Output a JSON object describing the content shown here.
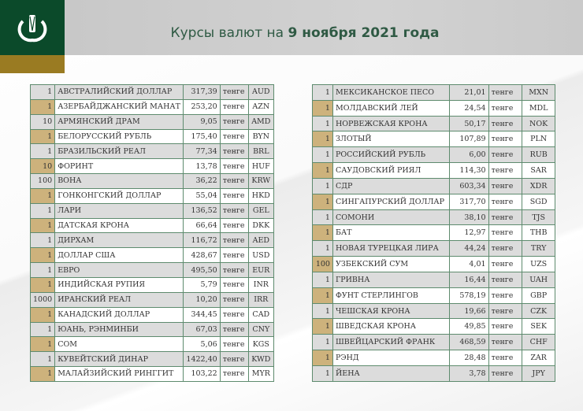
{
  "header": {
    "title_prefix": "Курсы валют на ",
    "title_date": "9 ноября 2021 года"
  },
  "colors": {
    "green": "#0b4a2a",
    "gold": "#9a7b22",
    "tan": "#cdb27c"
  },
  "left_table": [
    [
      "1",
      "АВСТРАЛИЙСКИЙ ДОЛЛАР",
      "317,39",
      "тенге",
      "AUD"
    ],
    [
      "1",
      "АЗЕРБАЙДЖАНСКИЙ МАНАТ",
      "253,20",
      "тенге",
      "AZN"
    ],
    [
      "10",
      "АРМЯНСКИЙ  ДРАМ",
      "9,05",
      "тенге",
      "AMD"
    ],
    [
      "1",
      "БЕЛОРУССКИЙ РУБЛЬ",
      "175,40",
      "тенге",
      "BYN"
    ],
    [
      "1",
      "БРАЗИЛЬСКИЙ РЕАЛ",
      "77,34",
      "тенге",
      "BRL"
    ],
    [
      "10",
      "ФОРИНТ",
      "13,78",
      "тенге",
      "HUF"
    ],
    [
      "100",
      "ВОНА",
      "36,22",
      "тенге",
      "KRW"
    ],
    [
      "1",
      "ГОНКОНГСКИЙ ДОЛЛАР",
      "55,04",
      "тенге",
      "HKD"
    ],
    [
      "1",
      "ЛАРИ",
      "136,52",
      "тенге",
      "GEL"
    ],
    [
      "1",
      "ДАТСКАЯ КРОНА",
      "66,64",
      "тенге",
      "DKK"
    ],
    [
      "1",
      "ДИРХАМ",
      "116,72",
      "тенге",
      "AED"
    ],
    [
      "1",
      "ДОЛЛАР США",
      "428,67",
      "тенге",
      "USD"
    ],
    [
      "1",
      "ЕВРО",
      "495,50",
      "тенге",
      "EUR"
    ],
    [
      "1",
      "ИНДИЙСКАЯ РУПИЯ",
      "5,79",
      "тенге",
      "INR"
    ],
    [
      "1000",
      "ИРАНСКИЙ РЕАЛ",
      "10,20",
      "тенге",
      "IRR"
    ],
    [
      "1",
      "КАНАДСКИЙ ДОЛЛАР",
      "344,45",
      "тенге",
      "CAD"
    ],
    [
      "1",
      "ЮАНЬ, РЭНМИНБИ",
      "67,03",
      "тенге",
      "CNY"
    ],
    [
      "1",
      "СОМ",
      "5,06",
      "тенге",
      "KGS"
    ],
    [
      "1",
      "КУВЕЙТСКИЙ ДИНАР",
      "1422,40",
      "тенге",
      "KWD"
    ],
    [
      "1",
      "МАЛАЙЗИЙСКИЙ РИНГГИТ",
      "103,22",
      "тенге",
      "MYR"
    ]
  ],
  "right_table": [
    [
      "1",
      "МЕКСИКАНСКОЕ ПЕСО",
      "21,01",
      "тенге",
      "MXN"
    ],
    [
      "1",
      "МОЛДАВСКИЙ ЛЕЙ",
      "24,54",
      "тенге",
      "MDL"
    ],
    [
      "1",
      "НОРВЕЖСКАЯ КРОНА",
      "50,17",
      "тенге",
      "NOK"
    ],
    [
      "1",
      "ЗЛОТЫЙ",
      "107,89",
      "тенге",
      "PLN"
    ],
    [
      "1",
      "РОССИЙСКИЙ РУБЛЬ",
      "6,00",
      "тенге",
      "RUB"
    ],
    [
      "1",
      "САУДОВСКИЙ РИЯЛ",
      "114,30",
      "тенге",
      "SAR"
    ],
    [
      "1",
      "СДР",
      "603,34",
      "тенге",
      "XDR"
    ],
    [
      "1",
      "СИНГАПУРСКИЙ ДОЛЛАР",
      "317,70",
      "тенге",
      "SGD"
    ],
    [
      "1",
      "СОМОНИ",
      "38,10",
      "тенге",
      "TJS"
    ],
    [
      "1",
      "БАТ",
      "12,97",
      "тенге",
      "THB"
    ],
    [
      "1",
      "НОВАЯ ТУРЕЦКАЯ ЛИРА",
      "44,24",
      "тенге",
      "TRY"
    ],
    [
      "100",
      "УЗБЕКСКИЙ СУМ",
      "4,01",
      "тенге",
      "UZS"
    ],
    [
      "1",
      "ГРИВНА",
      "16,44",
      "тенге",
      "UAH"
    ],
    [
      "1",
      "ФУНТ СТЕРЛИНГОВ",
      "578,19",
      "тенге",
      "GBP"
    ],
    [
      "1",
      "ЧЕШСКАЯ КРОНА",
      "19,66",
      "тенге",
      "CZK"
    ],
    [
      "1",
      "ШВЕДСКАЯ КРОНА",
      "49,85",
      "тенге",
      "SEK"
    ],
    [
      "1",
      "ШВЕЙЦАРСКИЙ ФРАНК",
      "468,59",
      "тенге",
      "CHF"
    ],
    [
      "1",
      "РЭНД",
      "28,48",
      "тенге",
      "ZAR"
    ],
    [
      "1",
      "ЙЕНА",
      "3,78",
      "тенге",
      "JPY"
    ]
  ]
}
